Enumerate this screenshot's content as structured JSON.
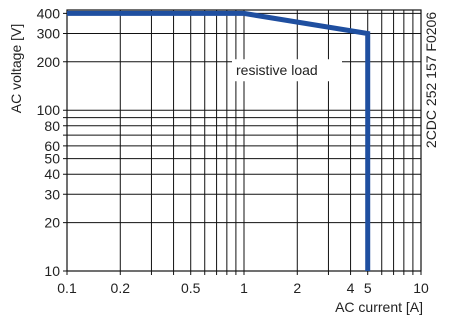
{
  "chart_data": {
    "type": "line",
    "x_scale": "log",
    "y_scale": "log",
    "xlim": [
      0.1,
      10
    ],
    "ylim": [
      10,
      420
    ],
    "xlabel": "AC current [A]",
    "ylabel": "AC voltage [V]",
    "x_tick_labels": [
      {
        "value": 0.1,
        "label": "0.1"
      },
      {
        "value": 0.2,
        "label": "0.2"
      },
      {
        "value": 0.5,
        "label": "0.5"
      },
      {
        "value": 1,
        "label": "1"
      },
      {
        "value": 2,
        "label": "2"
      },
      {
        "value": 4,
        "label": "4"
      },
      {
        "value": 5,
        "label": "5"
      },
      {
        "value": 10,
        "label": "10"
      }
    ],
    "y_tick_labels": [
      {
        "value": 10,
        "label": "10"
      },
      {
        "value": 20,
        "label": "20"
      },
      {
        "value": 30,
        "label": "30"
      },
      {
        "value": 40,
        "label": "40"
      },
      {
        "value": 50,
        "label": "50"
      },
      {
        "value": 60,
        "label": "60"
      },
      {
        "value": 80,
        "label": "80"
      },
      {
        "value": 100,
        "label": "100"
      },
      {
        "value": 200,
        "label": "200"
      },
      {
        "value": 300,
        "label": "300"
      },
      {
        "value": 400,
        "label": "400"
      }
    ],
    "x_gridlines": [
      0.1,
      0.2,
      0.3,
      0.4,
      0.5,
      0.6,
      0.7,
      0.8,
      0.9,
      1,
      2,
      3,
      4,
      5,
      6,
      7,
      8,
      9,
      10
    ],
    "y_gridlines": [
      10,
      20,
      30,
      40,
      50,
      60,
      70,
      80,
      90,
      100,
      200,
      300,
      400
    ],
    "grid": true,
    "series": [
      {
        "color": "#1f4fa0",
        "points": [
          [
            0.1,
            400
          ],
          [
            1,
            400
          ],
          [
            5,
            300
          ],
          [
            5,
            10
          ]
        ]
      }
    ],
    "annotations": [
      {
        "text": "resistive load",
        "x": 1,
        "y": 165
      }
    ],
    "side_label": "2CDC 252 157 F0206"
  }
}
